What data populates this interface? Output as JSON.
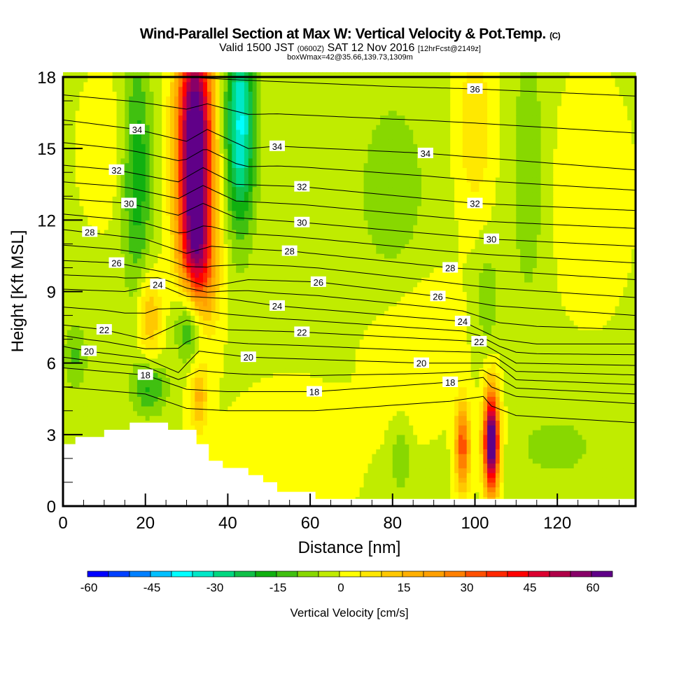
{
  "title": "Wind-Parallel Section at Max W: Vertical Velocity & Pot.Temp.",
  "copyright": "(C)",
  "subtitle_pre": "Valid 1500 JST",
  "subtitle_utc": "(0600Z)",
  "subtitle_date": "SAT 12 Nov 2016",
  "subtitle_fcst": "[12hrFcst@2149z]",
  "subtitle2": "boxWmax=42@35.66,139.73,1309m",
  "chart_data": {
    "type": "heatmap",
    "xlabel": "Distance [nm]",
    "ylabel": "Height [Kft MSL]",
    "xlim": [
      0,
      139
    ],
    "ylim": [
      0,
      18
    ],
    "xticks": [
      0,
      20,
      40,
      60,
      80,
      100,
      120
    ],
    "yticks": [
      0,
      3,
      6,
      9,
      12,
      15,
      18
    ],
    "colorbar": {
      "label": "Vertical Velocity [cm/s]",
      "levels_min": -60,
      "step": 5,
      "tick_labels": [
        "-60",
        "-45",
        "-30",
        "-15",
        "0",
        "15",
        "30",
        "45",
        "60"
      ],
      "colors": [
        "#0000ff",
        "#0040ff",
        "#0080ff",
        "#00c0ff",
        "#00ffff",
        "#00e8c8",
        "#00d880",
        "#10c048",
        "#10b010",
        "#40c010",
        "#88d800",
        "#c0ec00",
        "#ffff00",
        "#ffe800",
        "#ffc800",
        "#ffb000",
        "#ffa000",
        "#ff8000",
        "#ff5000",
        "#ff2800",
        "#ff0000",
        "#dc0030",
        "#b00048",
        "#880068",
        "#600088"
      ]
    },
    "w_field": {
      "base": -1,
      "features": [
        {
          "x": 32,
          "h": 15,
          "sx": 3,
          "sh": 4,
          "amp": 75
        },
        {
          "x": 33,
          "h": 10,
          "sx": 3,
          "sh": 2,
          "amp": 25
        },
        {
          "x": 43,
          "h": 16,
          "sx": 2.5,
          "sh": 3,
          "amp": -35
        },
        {
          "x": 18,
          "h": 14,
          "sx": 2.5,
          "sh": 3.5,
          "amp": -18
        },
        {
          "x": 31,
          "h": 7.8,
          "sx": 2.5,
          "sh": 1.3,
          "amp": -30
        },
        {
          "x": 21,
          "h": 8,
          "sx": 2,
          "sh": 1.3,
          "amp": 17
        },
        {
          "x": 21,
          "h": 5,
          "sx": 3,
          "sh": 0.8,
          "amp": -15
        },
        {
          "x": 3,
          "h": 6.3,
          "sx": 2,
          "sh": 1,
          "amp": -10
        },
        {
          "x": 33,
          "h": 4.5,
          "sx": 1.5,
          "sh": 1,
          "amp": 15
        },
        {
          "x": 97,
          "h": 2.5,
          "sx": 1.2,
          "sh": 1.3,
          "amp": 35
        },
        {
          "x": 104,
          "h": 2.7,
          "sx": 1.3,
          "sh": 1.5,
          "amp": 72
        },
        {
          "x": 80,
          "h": 13,
          "sx": 6,
          "sh": 3,
          "amp": -8
        },
        {
          "x": 113,
          "h": 14,
          "sx": 3,
          "sh": 4,
          "amp": -8
        },
        {
          "x": 100,
          "h": 16,
          "sx": 3,
          "sh": 2.5,
          "amp": 11
        },
        {
          "x": 128,
          "h": 13,
          "sx": 6,
          "sh": 3,
          "amp": 6
        },
        {
          "x": 85,
          "h": 7,
          "sx": 8,
          "sh": 2.5,
          "amp": 5
        },
        {
          "x": 120,
          "h": 2.5,
          "sx": 6,
          "sh": 0.8,
          "amp": -8
        },
        {
          "x": 82,
          "h": 2,
          "sx": 1.5,
          "sh": 1,
          "amp": -10
        },
        {
          "x": 55,
          "h": 2,
          "sx": 10,
          "sh": 2,
          "amp": 5
        },
        {
          "x": 103,
          "h": 8.7,
          "sx": 2,
          "sh": 1.5,
          "amp": -8
        },
        {
          "x": 10,
          "h": 15,
          "sx": 4,
          "sh": 2,
          "amp": 5
        }
      ]
    },
    "theta_contours": [
      {
        "level": 36,
        "label": "36",
        "label_at": [
          100,
          17.5
        ],
        "points": [
          [
            0,
            18.3
          ],
          [
            40,
            17.9
          ],
          [
            80,
            17.6
          ],
          [
            100,
            17.5
          ],
          [
            139,
            17.2
          ]
        ]
      },
      {
        "level": 34,
        "label": "34",
        "label_at": [
          18,
          15.8
        ],
        "label2_at": [
          52,
          15.1
        ],
        "label3_at": [
          88,
          14.8
        ],
        "points": [
          [
            0,
            16.2
          ],
          [
            18,
            15.8
          ],
          [
            30,
            15.3
          ],
          [
            35,
            15.8
          ],
          [
            45,
            15.0
          ],
          [
            52,
            15.1
          ],
          [
            88,
            14.8
          ],
          [
            110,
            14.5
          ],
          [
            139,
            14.1
          ]
        ]
      },
      {
        "level": 32,
        "label": "32",
        "label_at": [
          13,
          14.1
        ],
        "label2_at": [
          58,
          13.4
        ],
        "label3_at": [
          100,
          12.7
        ],
        "points": [
          [
            0,
            14.3
          ],
          [
            13,
            14.1
          ],
          [
            28,
            13.6
          ],
          [
            34,
            14.2
          ],
          [
            42,
            13.5
          ],
          [
            58,
            13.4
          ],
          [
            100,
            12.7
          ],
          [
            139,
            12.4
          ]
        ]
      },
      {
        "level": 30,
        "label": "30",
        "label_at": [
          16,
          12.7
        ],
        "label2_at": [
          58,
          11.9
        ],
        "label3_at": [
          104,
          11.2
        ],
        "points": [
          [
            0,
            12.9
          ],
          [
            16,
            12.7
          ],
          [
            28,
            12.2
          ],
          [
            34,
            12.7
          ],
          [
            42,
            12.1
          ],
          [
            58,
            11.9
          ],
          [
            104,
            11.2
          ],
          [
            139,
            10.9
          ]
        ]
      },
      {
        "level": 28,
        "label": "28",
        "label_at": [
          6.5,
          11.5
        ],
        "label2_at": [
          55,
          10.7
        ],
        "label3_at": [
          94,
          10.0
        ],
        "points": [
          [
            0,
            11.6
          ],
          [
            20,
            11.2
          ],
          [
            30,
            10.6
          ],
          [
            36,
            10.9
          ],
          [
            44,
            10.8
          ],
          [
            55,
            10.7
          ],
          [
            94,
            10.0
          ],
          [
            139,
            9.5
          ]
        ]
      },
      {
        "level": 26,
        "label": "26",
        "label_at": [
          13,
          10.2
        ],
        "label2_at": [
          62,
          9.4
        ],
        "label3_at": [
          91,
          8.8
        ],
        "points": [
          [
            0,
            10.3
          ],
          [
            13,
            10.2
          ],
          [
            25,
            9.8
          ],
          [
            35,
            9.2
          ],
          [
            45,
            9.5
          ],
          [
            62,
            9.4
          ],
          [
            91,
            8.8
          ],
          [
            105,
            8.4
          ],
          [
            139,
            8.0
          ]
        ]
      },
      {
        "level": 24,
        "label": "24",
        "label_at": [
          23,
          9.3
        ],
        "label2_at": [
          52,
          8.4
        ],
        "label3_at": [
          97,
          7.75
        ],
        "points": [
          [
            0,
            9.1
          ],
          [
            15,
            9.0
          ],
          [
            23,
            9.3
          ],
          [
            30,
            8.8
          ],
          [
            40,
            8.7
          ],
          [
            52,
            8.4
          ],
          [
            97,
            7.75
          ],
          [
            106,
            7.0
          ],
          [
            115,
            6.8
          ],
          [
            139,
            6.8
          ]
        ]
      },
      {
        "level": 22,
        "label": "22",
        "label_at": [
          10,
          7.4
        ],
        "label2_at": [
          58,
          7.3
        ],
        "label3_at": [
          101,
          6.9
        ],
        "points": [
          [
            0,
            7.6
          ],
          [
            10,
            7.4
          ],
          [
            20,
            7.0
          ],
          [
            30,
            7.8
          ],
          [
            40,
            7.4
          ],
          [
            58,
            7.3
          ],
          [
            101,
            6.9
          ],
          [
            110,
            6.0
          ],
          [
            139,
            5.9
          ]
        ]
      },
      {
        "level": 20,
        "label": "20",
        "label_at": [
          6.3,
          6.5
        ],
        "label2_at": [
          45,
          6.25
        ],
        "label3_at": [
          87,
          6.0
        ],
        "points": [
          [
            0,
            6.7
          ],
          [
            6,
            6.5
          ],
          [
            20,
            6.2
          ],
          [
            28,
            5.6
          ],
          [
            33,
            6.5
          ],
          [
            45,
            6.25
          ],
          [
            87,
            6.0
          ],
          [
            105,
            6.0
          ],
          [
            110,
            5.3
          ],
          [
            139,
            5.1
          ]
        ]
      },
      {
        "level": 18,
        "label": "18",
        "label_at": [
          20,
          5.5
        ],
        "label2_at": [
          61,
          4.8
        ],
        "label3_at": [
          94,
          5.2
        ],
        "points": [
          [
            0,
            5.8
          ],
          [
            20,
            5.5
          ],
          [
            30,
            4.9
          ],
          [
            40,
            4.8
          ],
          [
            61,
            4.8
          ],
          [
            94,
            5.2
          ],
          [
            102,
            5.4
          ],
          [
            104,
            5.0
          ],
          [
            110,
            4.6
          ],
          [
            139,
            4.3
          ]
        ]
      }
    ],
    "terrain": [
      [
        0,
        2.6
      ],
      [
        3,
        2.9
      ],
      [
        10,
        3.2
      ],
      [
        16.2,
        3.5
      ],
      [
        25.5,
        3.2
      ],
      [
        32.4,
        2.6
      ],
      [
        35.4,
        1.9
      ],
      [
        38.8,
        1.6
      ],
      [
        45,
        1.3
      ],
      [
        48.6,
        1.0
      ],
      [
        52,
        0.6
      ],
      [
        61.3,
        0.3
      ],
      [
        139,
        0.3
      ]
    ]
  }
}
